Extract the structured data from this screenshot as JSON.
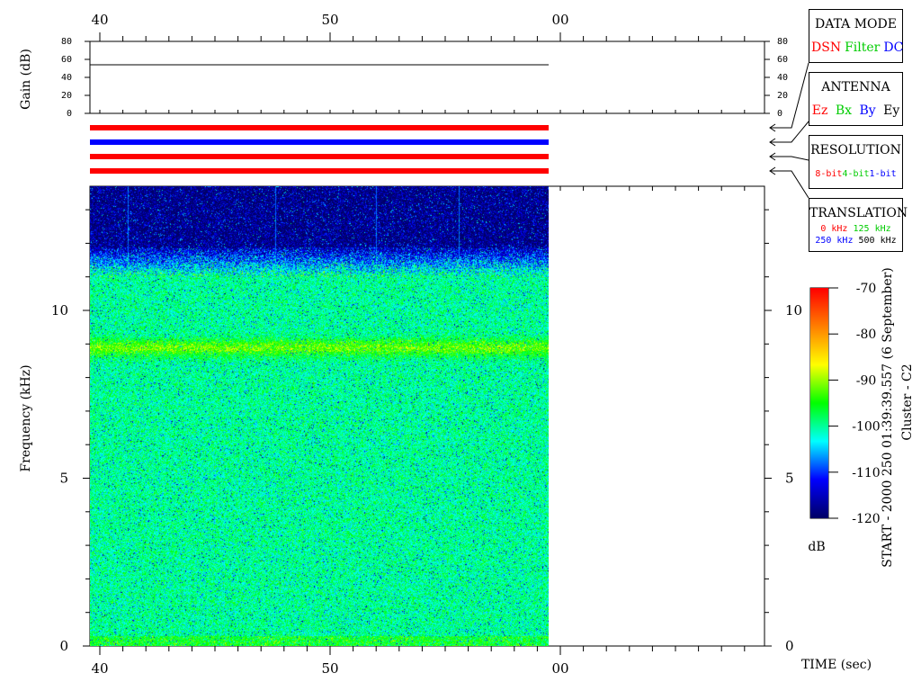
{
  "chart_data": {
    "type": "heatmap",
    "title": "Cluster - C2",
    "start_label": "START - 2000 250 01:39:39.557 (6 September)",
    "xlabel": "TIME (sec)",
    "x_ticks": [
      "40",
      "50",
      "00"
    ],
    "gain_panel": {
      "ylabel": "Gain (dB)",
      "y_ticks": [
        0,
        20,
        40,
        60,
        80
      ],
      "ylim": [
        0,
        80
      ],
      "gain_level_db": 54
    },
    "spectrogram": {
      "ylabel": "Frequency (kHz)",
      "y_ticks": [
        0,
        5,
        10
      ],
      "ylim_khz": [
        0,
        13.7
      ],
      "data_time_coverage": "from x tick 40 to just before x tick 00",
      "noise_floor_db": -100,
      "band_khz": 8.9,
      "band_level_db": -92,
      "quiet_above_khz": 11.0,
      "quiet_level_db": -120,
      "spikes_time_positions": [
        "~41.2",
        "~47.6",
        "~52.0",
        "~55.6"
      ]
    },
    "colorbar": {
      "label": "dB",
      "ticks": [
        -70,
        -80,
        -90,
        -100,
        -110,
        -120
      ],
      "range": [
        -120,
        -70
      ],
      "colors": [
        "#000066",
        "#0000ff",
        "#00ffff",
        "#00ff00",
        "#ffff00",
        "#ff8000",
        "#ff0000"
      ]
    },
    "mode_bars": [
      {
        "name": "DATA MODE",
        "color": "#ff0000"
      },
      {
        "name": "ANTENNA",
        "color": "#0000ff"
      },
      {
        "name": "RESOLUTION",
        "color": "#ff0000"
      },
      {
        "name": "TRANSLATION",
        "color": "#ff0000"
      }
    ]
  },
  "legends": {
    "data_mode": {
      "title": "DATA MODE",
      "items": [
        {
          "text": "DSN",
          "color": "#ff0000"
        },
        {
          "text": "Filter",
          "color": "#00cc00"
        },
        {
          "text": "DC",
          "color": "#0000ff"
        }
      ]
    },
    "antenna": {
      "title": "ANTENNA",
      "items": [
        {
          "text": "Ez",
          "color": "#ff0000"
        },
        {
          "text": "Bx",
          "color": "#00cc00"
        },
        {
          "text": "By",
          "color": "#0000ff"
        },
        {
          "text": "Ey",
          "color": "#000000"
        }
      ]
    },
    "resolution": {
      "title": "RESOLUTION",
      "items": [
        {
          "text": "8-bit",
          "color": "#ff0000"
        },
        {
          "text": "4-bit",
          "color": "#00cc00"
        },
        {
          "text": "1-bit",
          "color": "#0000ff"
        }
      ]
    },
    "translation": {
      "title": "TRANSLATION",
      "items": [
        {
          "text": "0 kHz",
          "color": "#ff0000"
        },
        {
          "text": "125 kHz",
          "color": "#00cc00"
        },
        {
          "text": "250 kHz",
          "color": "#0000ff"
        },
        {
          "text": "500 kHz",
          "color": "#000000"
        }
      ]
    }
  }
}
